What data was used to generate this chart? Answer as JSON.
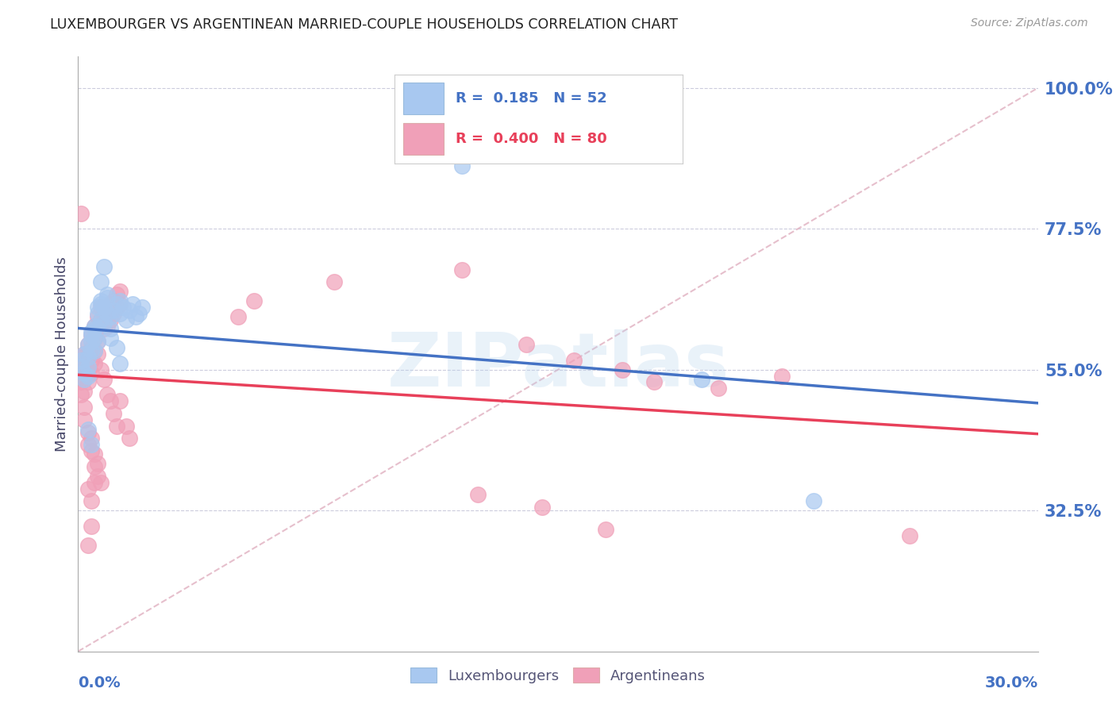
{
  "title": "LUXEMBOURGER VS ARGENTINEAN MARRIED-COUPLE HOUSEHOLDS CORRELATION CHART",
  "source": "Source: ZipAtlas.com",
  "ylabel": "Married-couple Households",
  "lux_color": "#A8C8F0",
  "arg_color": "#F0A0B8",
  "lux_line_color": "#4472C4",
  "arg_line_color": "#E8405A",
  "ref_line_color": "#E0B0C0",
  "grid_color": "#CCCCDD",
  "axis_color": "#4472C4",
  "watermark": "ZIPatlas",
  "xmin": 0.0,
  "xmax": 0.3,
  "ymin": 0.1,
  "ymax": 1.05,
  "yticks": [
    0.325,
    0.55,
    0.775,
    1.0
  ],
  "ytick_labels": [
    "32.5%",
    "55.0%",
    "77.5%",
    "100.0%"
  ],
  "lux_points": [
    [
      0.001,
      0.565
    ],
    [
      0.001,
      0.555
    ],
    [
      0.002,
      0.575
    ],
    [
      0.002,
      0.545
    ],
    [
      0.002,
      0.535
    ],
    [
      0.003,
      0.59
    ],
    [
      0.003,
      0.57
    ],
    [
      0.003,
      0.555
    ],
    [
      0.003,
      0.54
    ],
    [
      0.004,
      0.605
    ],
    [
      0.004,
      0.58
    ],
    [
      0.004,
      0.61
    ],
    [
      0.004,
      0.595
    ],
    [
      0.005,
      0.62
    ],
    [
      0.005,
      0.6
    ],
    [
      0.005,
      0.58
    ],
    [
      0.006,
      0.64
    ],
    [
      0.006,
      0.615
    ],
    [
      0.006,
      0.595
    ],
    [
      0.007,
      0.655
    ],
    [
      0.007,
      0.63
    ],
    [
      0.007,
      0.66
    ],
    [
      0.008,
      0.65
    ],
    [
      0.008,
      0.625
    ],
    [
      0.009,
      0.665
    ],
    [
      0.009,
      0.64
    ],
    [
      0.01,
      0.635
    ],
    [
      0.01,
      0.615
    ],
    [
      0.011,
      0.645
    ],
    [
      0.012,
      0.655
    ],
    [
      0.013,
      0.66
    ],
    [
      0.013,
      0.64
    ],
    [
      0.014,
      0.65
    ],
    [
      0.015,
      0.63
    ],
    [
      0.016,
      0.645
    ],
    [
      0.017,
      0.655
    ],
    [
      0.018,
      0.635
    ],
    [
      0.019,
      0.64
    ],
    [
      0.02,
      0.65
    ],
    [
      0.003,
      0.455
    ],
    [
      0.004,
      0.43
    ],
    [
      0.005,
      0.615
    ],
    [
      0.006,
      0.65
    ],
    [
      0.007,
      0.69
    ],
    [
      0.008,
      0.715
    ],
    [
      0.009,
      0.67
    ],
    [
      0.01,
      0.6
    ],
    [
      0.012,
      0.585
    ],
    [
      0.013,
      0.56
    ],
    [
      0.12,
      0.875
    ],
    [
      0.195,
      0.535
    ],
    [
      0.23,
      0.34
    ]
  ],
  "arg_points": [
    [
      0.001,
      0.57
    ],
    [
      0.001,
      0.55
    ],
    [
      0.001,
      0.53
    ],
    [
      0.001,
      0.51
    ],
    [
      0.001,
      0.8
    ],
    [
      0.002,
      0.575
    ],
    [
      0.002,
      0.555
    ],
    [
      0.002,
      0.535
    ],
    [
      0.002,
      0.515
    ],
    [
      0.002,
      0.49
    ],
    [
      0.002,
      0.47
    ],
    [
      0.003,
      0.59
    ],
    [
      0.003,
      0.57
    ],
    [
      0.003,
      0.55
    ],
    [
      0.003,
      0.53
    ],
    [
      0.003,
      0.45
    ],
    [
      0.003,
      0.43
    ],
    [
      0.003,
      0.36
    ],
    [
      0.003,
      0.27
    ],
    [
      0.004,
      0.605
    ],
    [
      0.004,
      0.585
    ],
    [
      0.004,
      0.565
    ],
    [
      0.004,
      0.545
    ],
    [
      0.004,
      0.44
    ],
    [
      0.004,
      0.42
    ],
    [
      0.004,
      0.34
    ],
    [
      0.004,
      0.3
    ],
    [
      0.005,
      0.62
    ],
    [
      0.005,
      0.6
    ],
    [
      0.005,
      0.58
    ],
    [
      0.005,
      0.56
    ],
    [
      0.005,
      0.415
    ],
    [
      0.005,
      0.395
    ],
    [
      0.005,
      0.37
    ],
    [
      0.006,
      0.635
    ],
    [
      0.006,
      0.615
    ],
    [
      0.006,
      0.595
    ],
    [
      0.006,
      0.575
    ],
    [
      0.006,
      0.4
    ],
    [
      0.006,
      0.38
    ],
    [
      0.007,
      0.65
    ],
    [
      0.007,
      0.63
    ],
    [
      0.007,
      0.55
    ],
    [
      0.007,
      0.37
    ],
    [
      0.008,
      0.64
    ],
    [
      0.008,
      0.615
    ],
    [
      0.008,
      0.535
    ],
    [
      0.009,
      0.645
    ],
    [
      0.009,
      0.62
    ],
    [
      0.009,
      0.51
    ],
    [
      0.01,
      0.655
    ],
    [
      0.01,
      0.63
    ],
    [
      0.01,
      0.5
    ],
    [
      0.011,
      0.66
    ],
    [
      0.011,
      0.64
    ],
    [
      0.011,
      0.48
    ],
    [
      0.012,
      0.67
    ],
    [
      0.012,
      0.65
    ],
    [
      0.012,
      0.46
    ],
    [
      0.013,
      0.675
    ],
    [
      0.013,
      0.655
    ],
    [
      0.013,
      0.5
    ],
    [
      0.015,
      0.46
    ],
    [
      0.016,
      0.44
    ],
    [
      0.05,
      0.635
    ],
    [
      0.055,
      0.66
    ],
    [
      0.08,
      0.69
    ],
    [
      0.12,
      0.71
    ],
    [
      0.14,
      0.59
    ],
    [
      0.155,
      0.565
    ],
    [
      0.17,
      0.55
    ],
    [
      0.18,
      0.53
    ],
    [
      0.2,
      0.52
    ],
    [
      0.22,
      0.54
    ],
    [
      0.165,
      0.295
    ],
    [
      0.26,
      0.285
    ],
    [
      0.125,
      0.35
    ],
    [
      0.145,
      0.33
    ]
  ]
}
